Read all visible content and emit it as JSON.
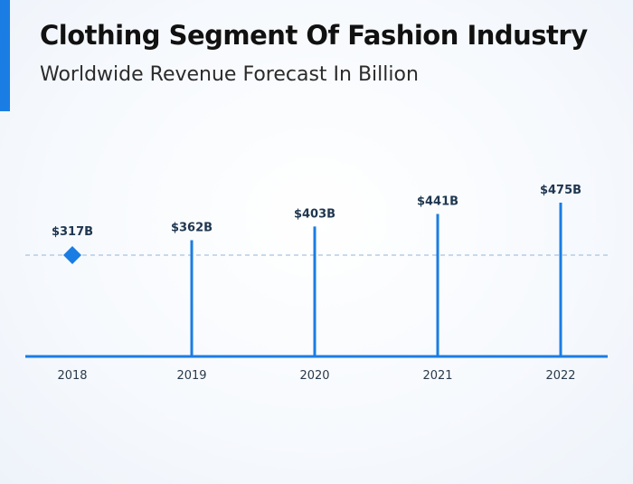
{
  "header": {
    "title": "Clothing Segment Of Fashion Industry",
    "subtitle": "Worldwide Revenue Forecast In Billion"
  },
  "colors": {
    "accent": "#1a7de3",
    "stem": "#1a7de3",
    "baseline_dashed": "#a9c4e0",
    "label": "#1f3650"
  },
  "chart_data": {
    "type": "line",
    "title": "Clothing Segment Of Fashion Industry",
    "subtitle": "Worldwide Revenue Forecast In Billion",
    "categories": [
      "2018",
      "2019",
      "2020",
      "2021",
      "2022"
    ],
    "values": [
      317,
      362,
      403,
      441,
      475
    ],
    "value_labels": [
      "$317B",
      "$362B",
      "$403B",
      "$441B",
      "$475B"
    ],
    "units": "Billion USD",
    "reference_line": {
      "value": 317,
      "style": "dashed"
    },
    "baseline_marker": {
      "category": "2018",
      "shape": "diamond"
    },
    "grid": false,
    "legend": "none"
  }
}
